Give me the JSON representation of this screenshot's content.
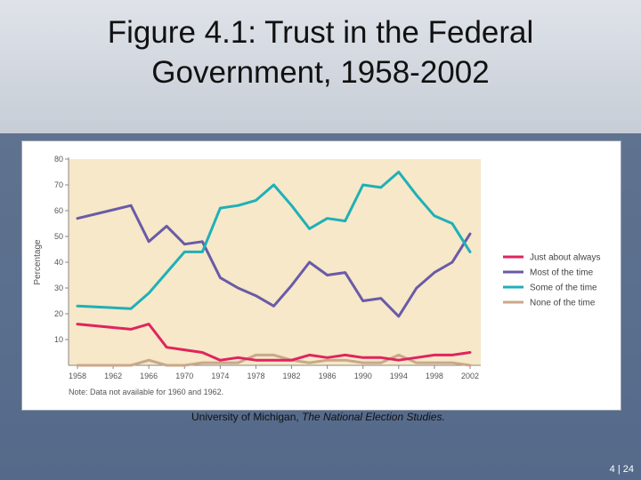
{
  "slide": {
    "title_line1": "Figure 4.1: Trust in the Federal",
    "title_line2": "Government, 1958-2002",
    "source_prefix": "University of Michigan, ",
    "source_italic": "The National Election Studies.",
    "page_number": "4 | 24"
  },
  "chart_data": {
    "type": "line",
    "title": "",
    "xlabel": "",
    "ylabel": "Percentage",
    "ylim": [
      0,
      80
    ],
    "xlim": [
      1958,
      2002
    ],
    "x_ticks": [
      1958,
      1962,
      1966,
      1970,
      1974,
      1978,
      1982,
      1986,
      1990,
      1994,
      1998,
      2002
    ],
    "y_ticks": [
      10,
      20,
      30,
      40,
      50,
      60,
      70,
      80
    ],
    "note": "Note:  Data not available for 1960 and 1962.",
    "legend_position": "right",
    "grid": false,
    "plot_background": "#f6e8c8",
    "series": [
      {
        "name": "Just about always",
        "color": "#e0245e",
        "points": [
          [
            1958,
            16
          ],
          [
            1964,
            14
          ],
          [
            1966,
            16
          ],
          [
            1968,
            7
          ],
          [
            1970,
            6
          ],
          [
            1972,
            5
          ],
          [
            1974,
            2
          ],
          [
            1976,
            3
          ],
          [
            1978,
            2
          ],
          [
            1980,
            2
          ],
          [
            1982,
            2
          ],
          [
            1984,
            4
          ],
          [
            1986,
            3
          ],
          [
            1988,
            4
          ],
          [
            1990,
            3
          ],
          [
            1992,
            3
          ],
          [
            1994,
            2
          ],
          [
            1996,
            3
          ],
          [
            1998,
            4
          ],
          [
            2000,
            4
          ],
          [
            2002,
            5
          ]
        ]
      },
      {
        "name": "Most of the time",
        "color": "#6a5aa8",
        "points": [
          [
            1958,
            57
          ],
          [
            1964,
            62
          ],
          [
            1966,
            48
          ],
          [
            1968,
            54
          ],
          [
            1970,
            47
          ],
          [
            1972,
            48
          ],
          [
            1974,
            34
          ],
          [
            1976,
            30
          ],
          [
            1978,
            27
          ],
          [
            1980,
            23
          ],
          [
            1982,
            31
          ],
          [
            1984,
            40
          ],
          [
            1986,
            35
          ],
          [
            1988,
            36
          ],
          [
            1990,
            25
          ],
          [
            1992,
            26
          ],
          [
            1994,
            19
          ],
          [
            1996,
            30
          ],
          [
            1998,
            36
          ],
          [
            2000,
            40
          ],
          [
            2002,
            51
          ]
        ]
      },
      {
        "name": "Some of the time",
        "color": "#1fb0b8",
        "points": [
          [
            1958,
            23
          ],
          [
            1964,
            22
          ],
          [
            1966,
            28
          ],
          [
            1968,
            36
          ],
          [
            1970,
            44
          ],
          [
            1972,
            44
          ],
          [
            1974,
            61
          ],
          [
            1976,
            62
          ],
          [
            1978,
            64
          ],
          [
            1980,
            70
          ],
          [
            1982,
            62
          ],
          [
            1984,
            53
          ],
          [
            1986,
            57
          ],
          [
            1988,
            56
          ],
          [
            1990,
            70
          ],
          [
            1992,
            69
          ],
          [
            1994,
            75
          ],
          [
            1996,
            66
          ],
          [
            1998,
            58
          ],
          [
            2000,
            55
          ],
          [
            2002,
            44
          ]
        ]
      },
      {
        "name": "None of the time",
        "color": "#c9a88a",
        "points": [
          [
            1958,
            0
          ],
          [
            1964,
            0
          ],
          [
            1966,
            2
          ],
          [
            1968,
            0
          ],
          [
            1970,
            0
          ],
          [
            1972,
            1
          ],
          [
            1974,
            1
          ],
          [
            1976,
            1
          ],
          [
            1978,
            4
          ],
          [
            1980,
            4
          ],
          [
            1982,
            2
          ],
          [
            1984,
            1
          ],
          [
            1986,
            2
          ],
          [
            1988,
            2
          ],
          [
            1990,
            1
          ],
          [
            1992,
            1
          ],
          [
            1994,
            4
          ],
          [
            1996,
            1
          ],
          [
            1998,
            1
          ],
          [
            2000,
            1
          ],
          [
            2002,
            0
          ]
        ]
      }
    ]
  }
}
